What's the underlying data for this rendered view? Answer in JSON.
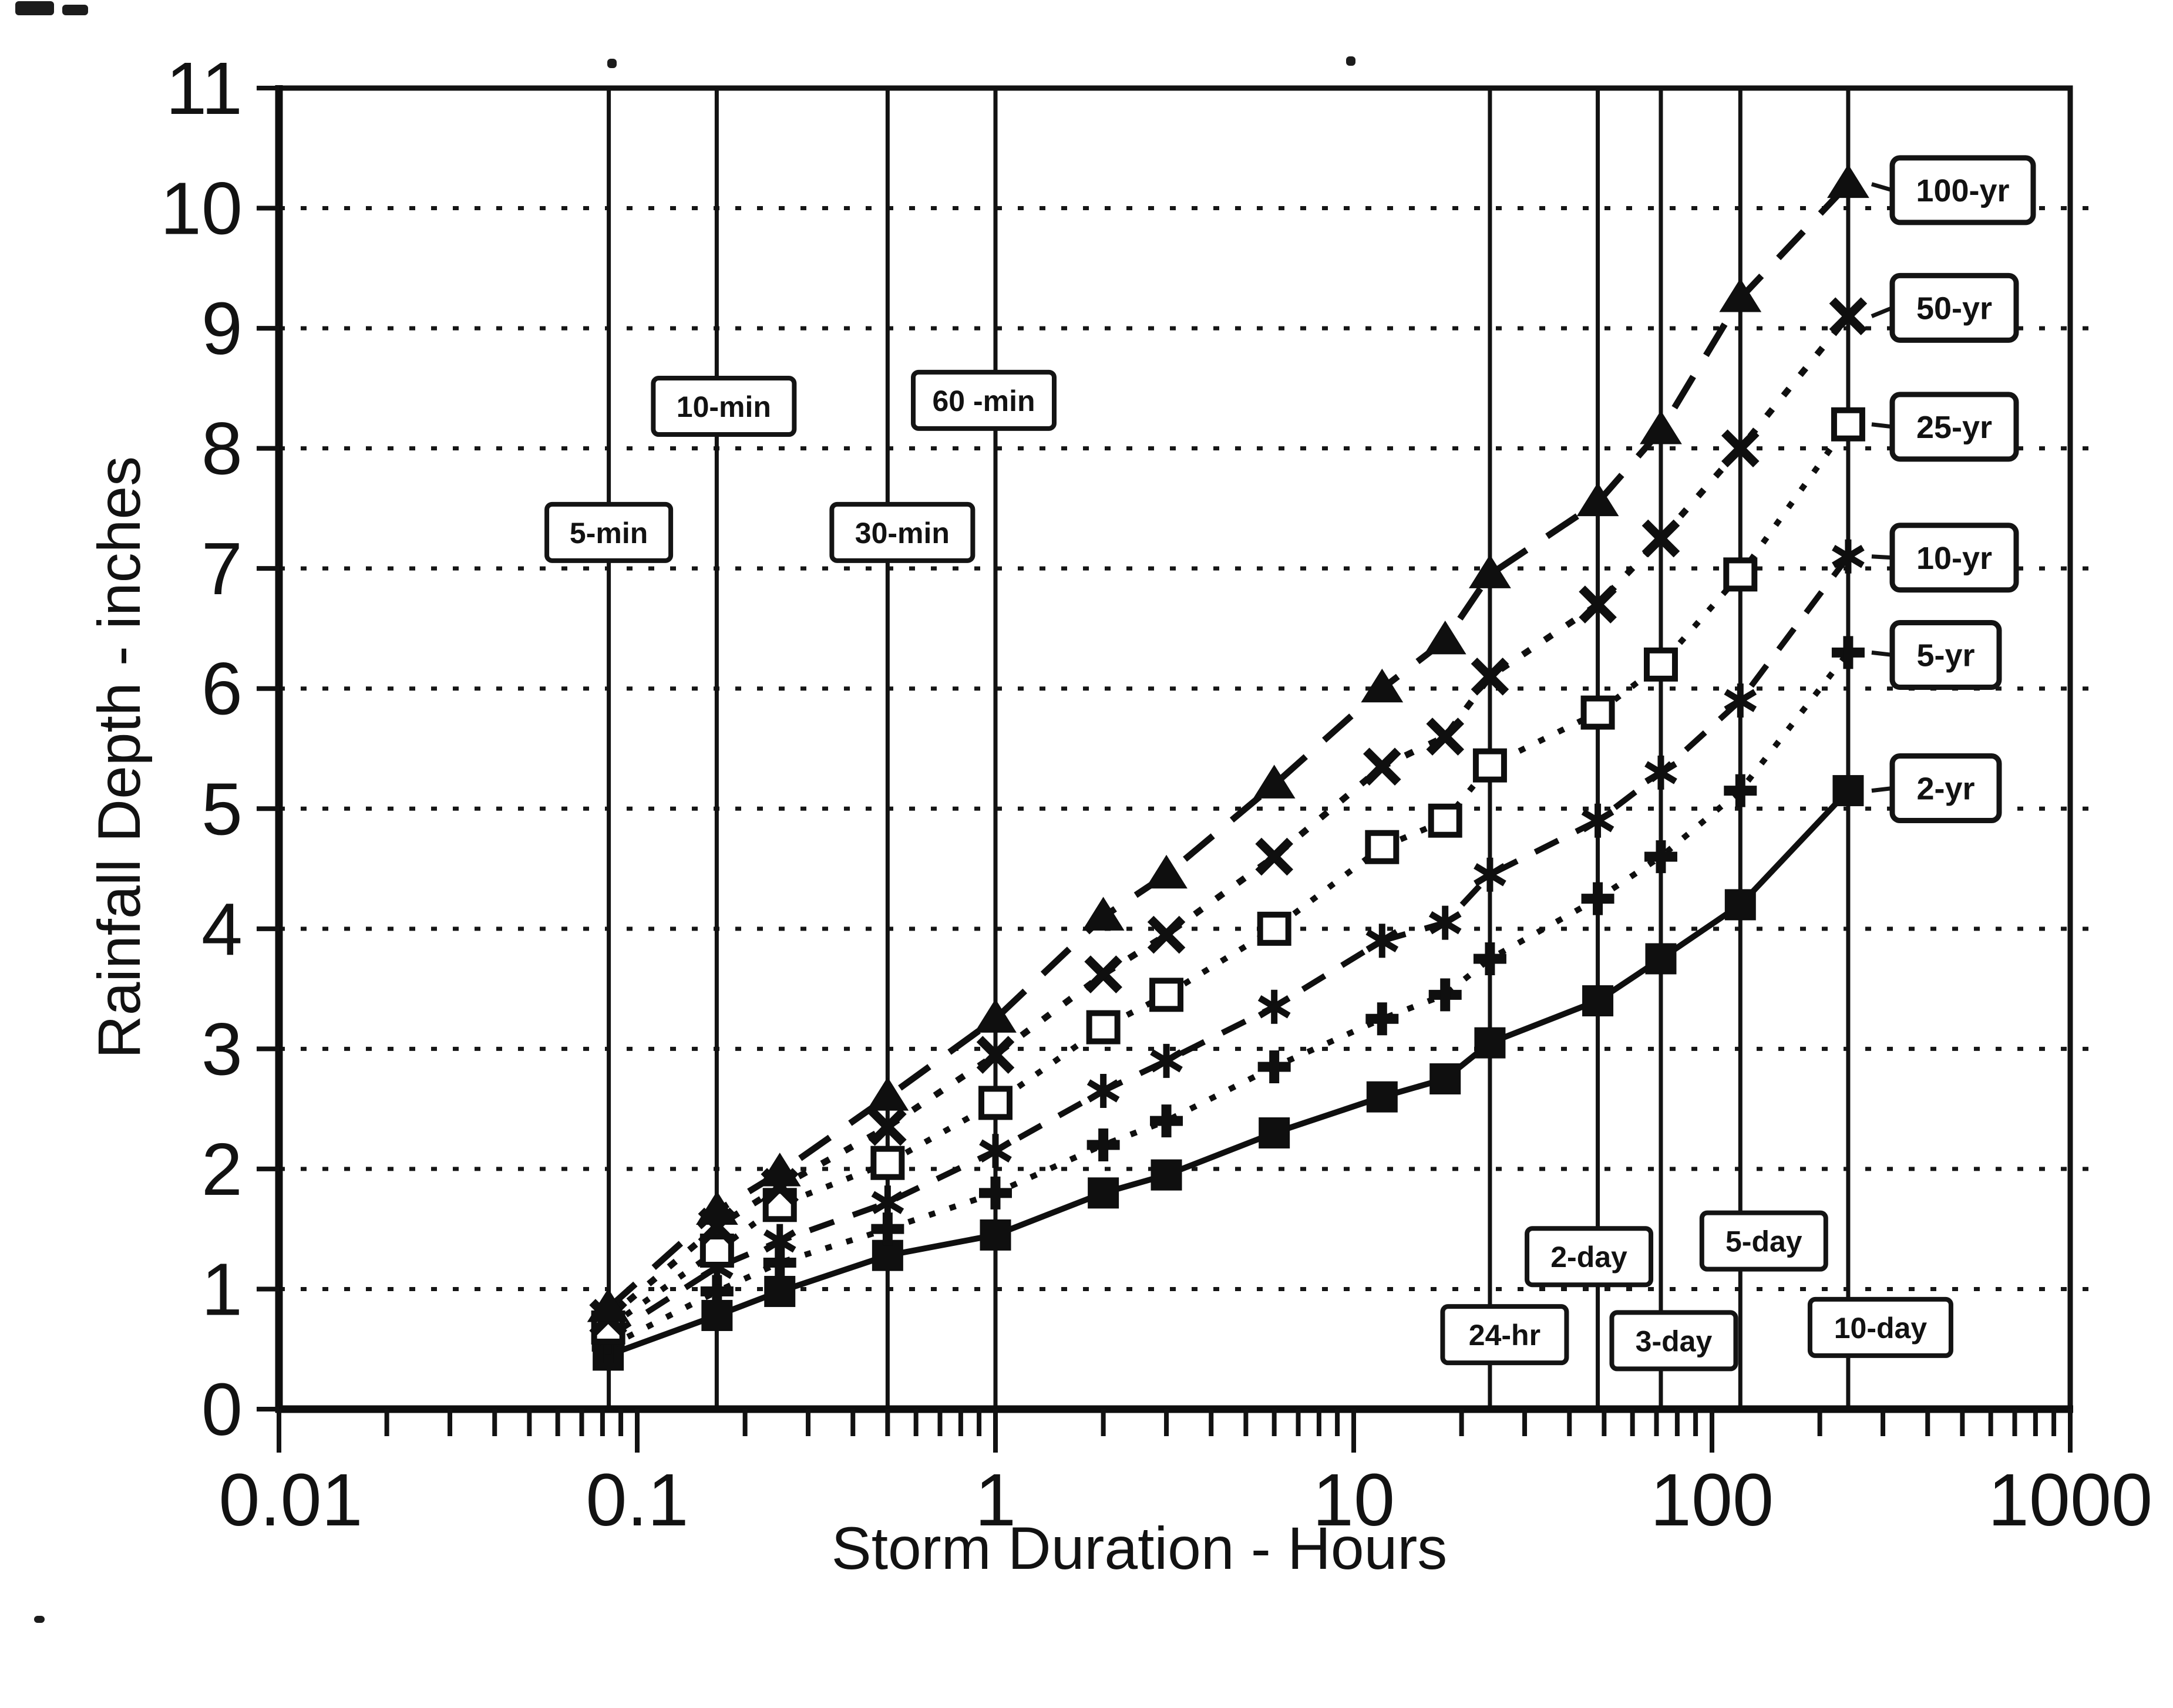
{
  "chart_data": {
    "type": "line",
    "title": "",
    "xlabel": "Storm Duration - Hours",
    "ylabel": "Rainfall Depth - inches",
    "x_scale": "log",
    "xlim": [
      0.01,
      1000
    ],
    "ylim": [
      0,
      11
    ],
    "grid": "horizontal dotted lines at each integer depth",
    "legend_position": "right, boxed labels at end of each curve",
    "x_tick_labels": [
      "0.01",
      "0.1",
      "1",
      "10",
      "100",
      "1000"
    ],
    "x_tick_decades": [
      -2,
      -1,
      0,
      1,
      2,
      3
    ],
    "y_tick_labels": [
      "0",
      "1",
      "2",
      "3",
      "4",
      "5",
      "6",
      "7",
      "8",
      "9",
      "10",
      "11"
    ],
    "x_hours": [
      0.083,
      0.167,
      0.25,
      0.5,
      1,
      2,
      3,
      6,
      12,
      18,
      24,
      48,
      72,
      120,
      240
    ],
    "series": [
      {
        "name": "2-yr",
        "marker": "filled-square",
        "line": "solid",
        "legend_y": 5.17,
        "values": [
          0.45,
          0.78,
          0.98,
          1.28,
          1.45,
          1.8,
          1.95,
          2.3,
          2.6,
          2.75,
          3.05,
          3.4,
          3.75,
          4.2,
          5.15
        ]
      },
      {
        "name": "5-yr",
        "marker": "plus",
        "line": "dotted",
        "legend_y": 6.28,
        "values": [
          0.52,
          0.98,
          1.22,
          1.5,
          1.8,
          2.2,
          2.4,
          2.85,
          3.25,
          3.45,
          3.75,
          4.25,
          4.6,
          5.15,
          6.3
        ]
      },
      {
        "name": "10-yr",
        "marker": "asterisk",
        "line": "dashed",
        "legend_y": 7.09,
        "values": [
          0.6,
          1.18,
          1.4,
          1.72,
          2.15,
          2.65,
          2.9,
          3.35,
          3.9,
          4.05,
          4.45,
          4.9,
          5.3,
          5.9,
          7.1
        ]
      },
      {
        "name": "25-yr",
        "marker": "open-square",
        "line": "dotted",
        "legend_y": 8.18,
        "values": [
          0.68,
          1.32,
          1.7,
          2.05,
          2.55,
          3.18,
          3.45,
          4.0,
          4.68,
          4.9,
          5.36,
          5.8,
          6.2,
          6.95,
          8.2
        ]
      },
      {
        "name": "50-yr",
        "marker": "x",
        "line": "dotted-coarse",
        "legend_y": 9.17,
        "values": [
          0.76,
          1.52,
          1.85,
          2.35,
          2.95,
          3.62,
          3.95,
          4.6,
          5.35,
          5.6,
          6.1,
          6.7,
          7.25,
          8.0,
          9.1
        ]
      },
      {
        "name": "100-yr",
        "marker": "filled-triangle",
        "line": "dashed-long",
        "legend_y": 10.15,
        "values": [
          0.84,
          1.65,
          1.97,
          2.6,
          3.25,
          4.1,
          4.45,
          5.2,
          6.0,
          6.4,
          6.95,
          7.55,
          8.15,
          9.25,
          10.2
        ]
      }
    ],
    "duration_lines": [
      {
        "label": "5-min",
        "hours": 0.0833,
        "label_y": 7.3,
        "dx": 0
      },
      {
        "label": "10-min",
        "hours": 0.1667,
        "label_y": 8.35,
        "dx": 12
      },
      {
        "label": "30-min",
        "hours": 0.5,
        "label_y": 7.3,
        "dx": 25
      },
      {
        "label": "60 -min",
        "hours": 1,
        "label_y": 8.4,
        "dx": -20
      },
      {
        "label": "24-hr",
        "hours": 24,
        "label_y": 0.62,
        "dx": 25
      },
      {
        "label": "2-day",
        "hours": 48,
        "label_y": 1.27,
        "dx": -15
      },
      {
        "label": "3-day",
        "hours": 72,
        "label_y": 0.57,
        "dx": 22
      },
      {
        "label": "5-day",
        "hours": 120,
        "label_y": 1.4,
        "dx": 40
      },
      {
        "label": "10-day",
        "hours": 240,
        "label_y": 0.68,
        "dx": 55
      }
    ],
    "ink_color": "#121212",
    "background_color": "#ffffff",
    "scan_artifacts": [
      {
        "x": 26,
        "y": 2,
        "w": 66,
        "h": 24
      },
      {
        "x": 106,
        "y": 8,
        "w": 44,
        "h": 18
      },
      {
        "x": 1034,
        "y": 100,
        "w": 16,
        "h": 16
      },
      {
        "x": 2292,
        "y": 96,
        "w": 16,
        "h": 16
      },
      {
        "x": 58,
        "y": 2752,
        "w": 18,
        "h": 12
      }
    ]
  }
}
